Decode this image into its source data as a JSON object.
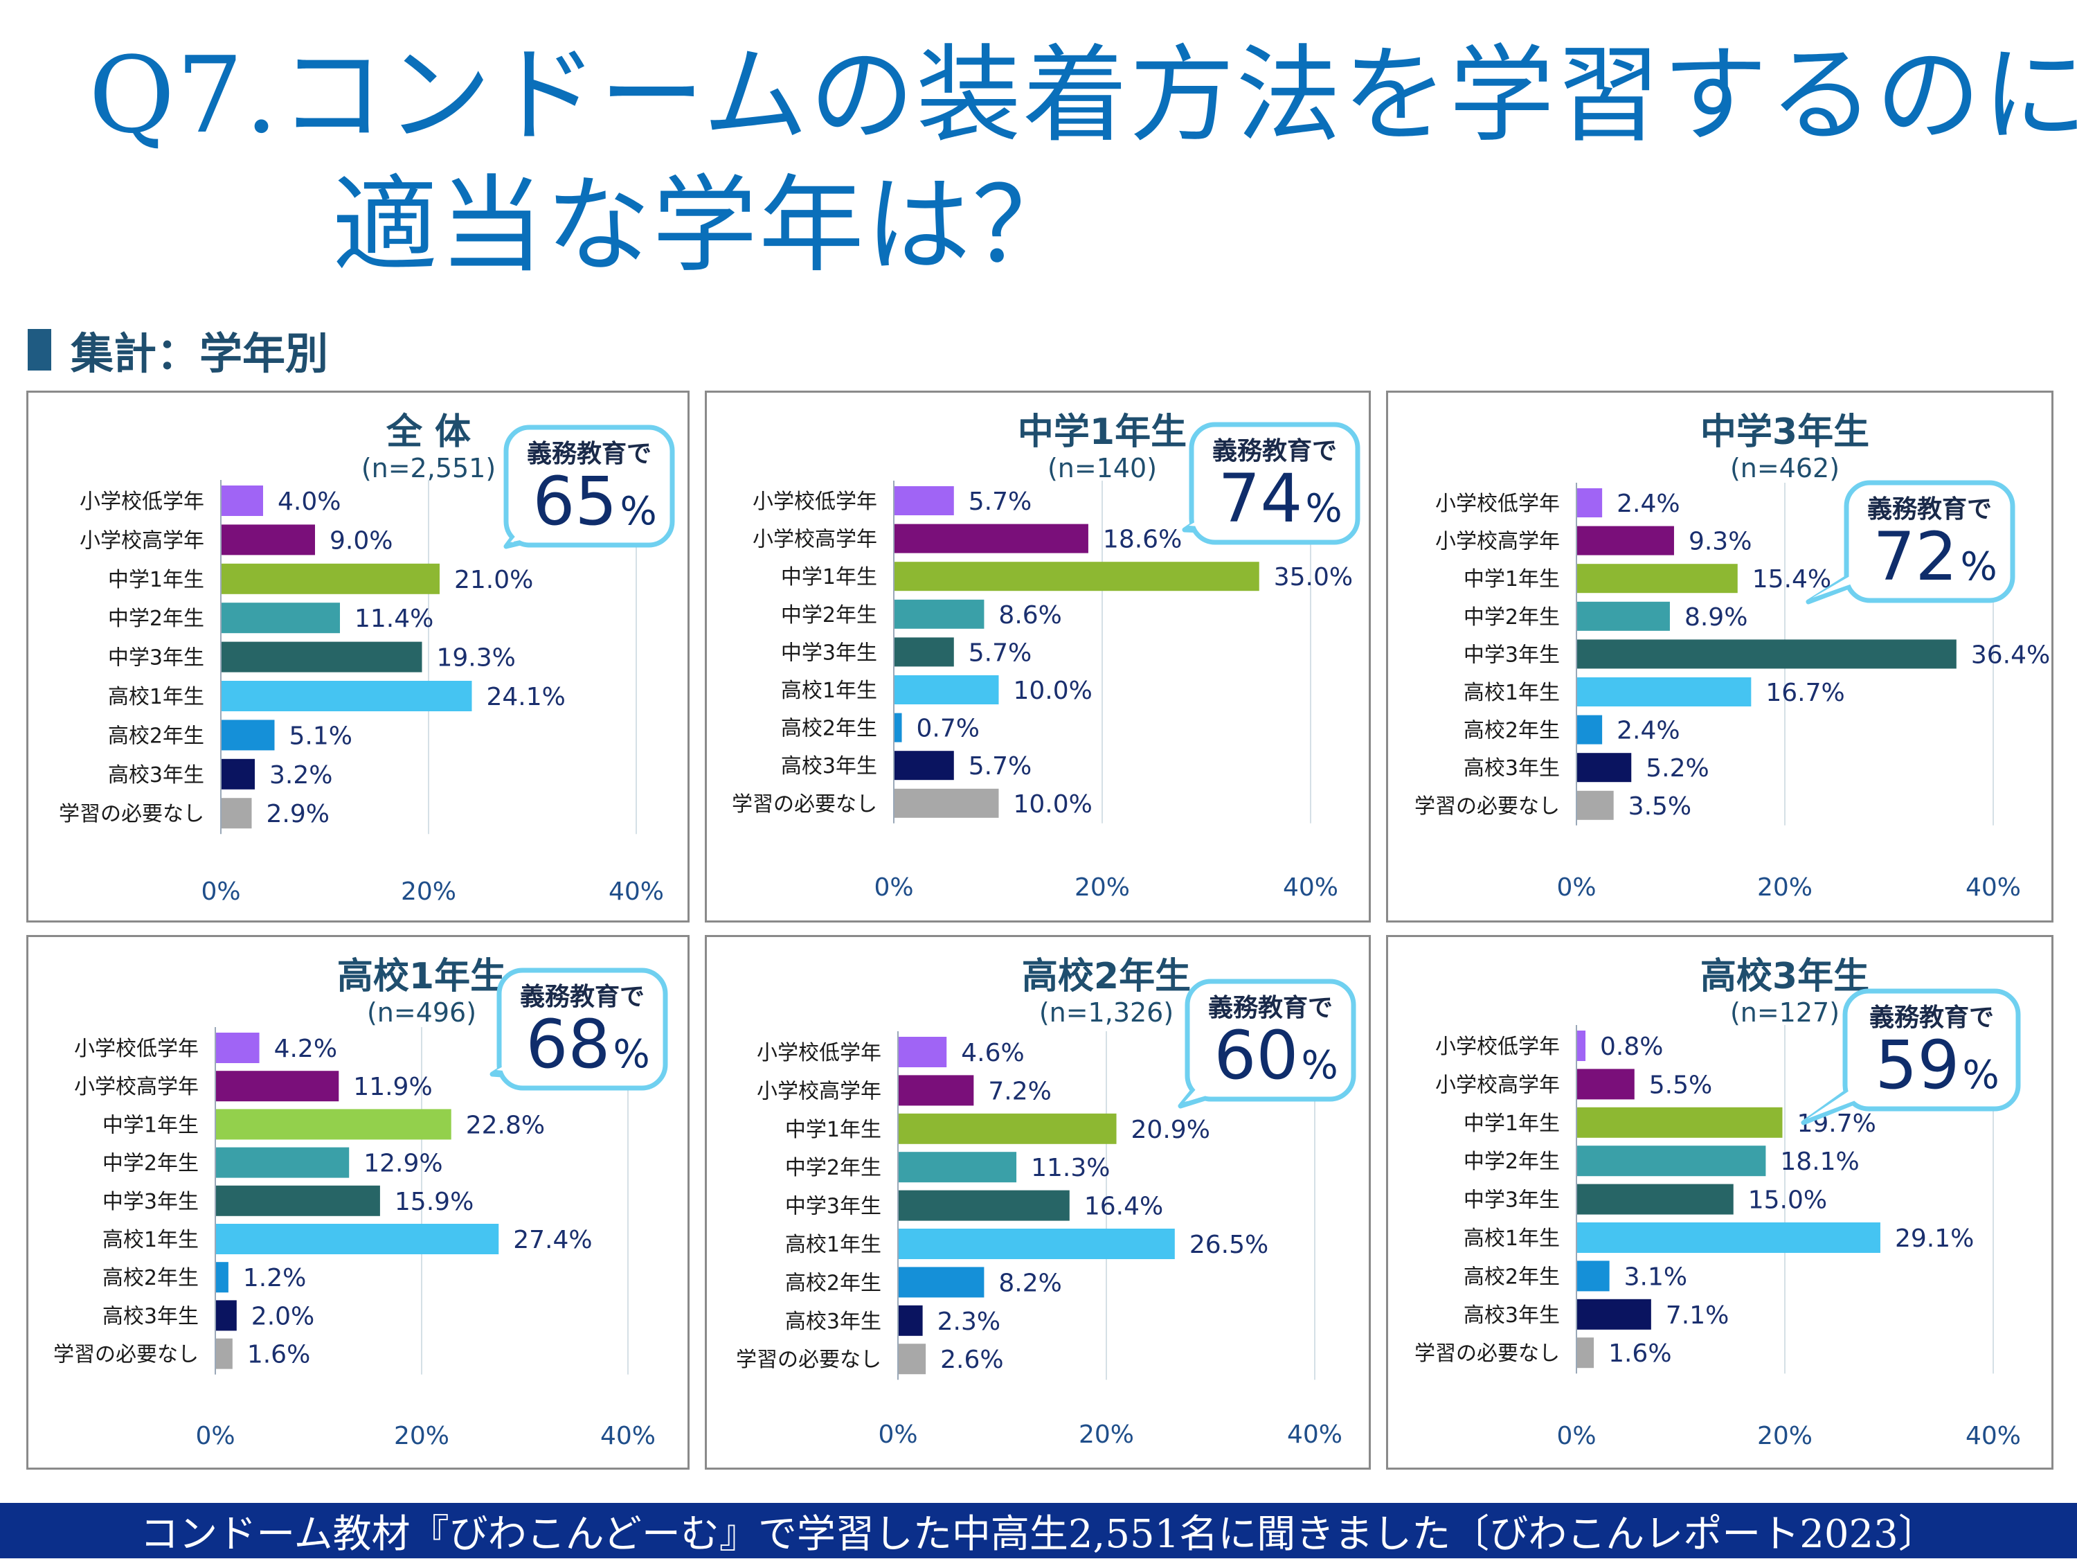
{
  "title": {
    "line1": "Q7.コンドームの装着方法を学習するのに",
    "line2": "適当な学年は？"
  },
  "section": {
    "label": "集計：学年別"
  },
  "footer": {
    "text": "コンドーム教材『びわこんどーむ』で学習した中高生2,551名に聞きました〔びわこんレポート2023〕"
  },
  "colors": {
    "bars": [
      "#a064f5",
      "#7a0f7a",
      "#8db832",
      "#3aa0a8",
      "#276566",
      "#45c4f2",
      "#1590d8",
      "#0a1460",
      "#a8a8a8"
    ],
    "bars_hs1_green": "#93d04c",
    "axis_text": "#1f4e8a",
    "value_text": "#1a2f6e",
    "callout_border": "#6fd0f0",
    "callout_number": "#0f2d6b",
    "panel_title": "#1f4e6e"
  },
  "callout_prefix": "義務教育で",
  "chart_data": [
    {
      "type": "bar",
      "orientation": "horizontal",
      "title": "全 体",
      "subtitle": "(n=2,551)",
      "categories": [
        "小学校低学年",
        "小学校高学年",
        "中学1年生",
        "中学2年生",
        "中学3年生",
        "高校1年生",
        "高校2年生",
        "高校3年生",
        "学習の必要なし"
      ],
      "values": [
        4.0,
        9.0,
        21.0,
        11.4,
        19.3,
        24.1,
        5.1,
        3.2,
        2.9
      ],
      "labels": [
        "4.0%",
        "9.0%",
        "21.0%",
        "11.4%",
        "19.3%",
        "24.1%",
        "5.1%",
        "3.2%",
        "2.9%"
      ],
      "xlim": [
        0,
        40
      ],
      "xticks": [
        "0%",
        "20%",
        "40%"
      ],
      "callout_value": "65",
      "callout_unit": "%"
    },
    {
      "type": "bar",
      "orientation": "horizontal",
      "title": "中学1年生",
      "subtitle": "(n=140)",
      "categories": [
        "小学校低学年",
        "小学校高学年",
        "中学1年生",
        "中学2年生",
        "中学3年生",
        "高校1年生",
        "高校2年生",
        "高校3年生",
        "学習の必要なし"
      ],
      "values": [
        5.7,
        18.6,
        35.0,
        8.6,
        5.7,
        10.0,
        0.7,
        5.7,
        10.0
      ],
      "labels": [
        "5.7%",
        "18.6%",
        "35.0%",
        "8.6%",
        "5.7%",
        "10.0%",
        "0.7%",
        "5.7%",
        "10.0%"
      ],
      "xlim": [
        0,
        40
      ],
      "xticks": [
        "0%",
        "20%",
        "40%"
      ],
      "callout_value": "74",
      "callout_unit": "%"
    },
    {
      "type": "bar",
      "orientation": "horizontal",
      "title": "中学3年生",
      "subtitle": "(n=462)",
      "categories": [
        "小学校低学年",
        "小学校高学年",
        "中学1年生",
        "中学2年生",
        "中学3年生",
        "高校1年生",
        "高校2年生",
        "高校3年生",
        "学習の必要なし"
      ],
      "values": [
        2.4,
        9.3,
        15.4,
        8.9,
        36.4,
        16.7,
        2.4,
        5.2,
        3.5
      ],
      "labels": [
        "2.4%",
        "9.3%",
        "15.4%",
        "8.9%",
        "36.4%",
        "16.7%",
        "2.4%",
        "5.2%",
        "3.5%"
      ],
      "xlim": [
        0,
        40
      ],
      "xticks": [
        "0%",
        "20%",
        "40%"
      ],
      "callout_value": "72",
      "callout_unit": "%"
    },
    {
      "type": "bar",
      "orientation": "horizontal",
      "title": "高校1年生",
      "subtitle": "(n=496)",
      "categories": [
        "小学校低学年",
        "小学校高学年",
        "中学1年生",
        "中学2年生",
        "中学3年生",
        "高校1年生",
        "高校2年生",
        "高校3年生",
        "学習の必要なし"
      ],
      "values": [
        4.2,
        11.9,
        22.8,
        12.9,
        15.9,
        27.4,
        1.2,
        2.0,
        1.6
      ],
      "labels": [
        "4.2%",
        "11.9%",
        "22.8%",
        "12.9%",
        "15.9%",
        "27.4%",
        "1.2%",
        "2.0%",
        "1.6%"
      ],
      "xlim": [
        0,
        40
      ],
      "xticks": [
        "0%",
        "20%",
        "40%"
      ],
      "callout_value": "68",
      "callout_unit": "%"
    },
    {
      "type": "bar",
      "orientation": "horizontal",
      "title": "高校2年生",
      "subtitle": "(n=1,326)",
      "categories": [
        "小学校低学年",
        "小学校高学年",
        "中学1年生",
        "中学2年生",
        "中学3年生",
        "高校1年生",
        "高校2年生",
        "高校3年生",
        "学習の必要なし"
      ],
      "values": [
        4.6,
        7.2,
        20.9,
        11.3,
        16.4,
        26.5,
        8.2,
        2.3,
        2.6
      ],
      "labels": [
        "4.6%",
        "7.2%",
        "20.9%",
        "11.3%",
        "16.4%",
        "26.5%",
        "8.2%",
        "2.3%",
        "2.6%"
      ],
      "xlim": [
        0,
        40
      ],
      "xticks": [
        "0%",
        "20%",
        "40%"
      ],
      "callout_value": "60",
      "callout_unit": "%"
    },
    {
      "type": "bar",
      "orientation": "horizontal",
      "title": "高校3年生",
      "subtitle": "(n=127)",
      "categories": [
        "小学校低学年",
        "小学校高学年",
        "中学1年生",
        "中学2年生",
        "中学3年生",
        "高校1年生",
        "高校2年生",
        "高校3年生",
        "学習の必要なし"
      ],
      "values": [
        0.8,
        5.5,
        19.7,
        18.1,
        15.0,
        29.1,
        3.1,
        7.1,
        1.6
      ],
      "labels": [
        "0.8%",
        "5.5%",
        "19.7%",
        "18.1%",
        "15.0%",
        "29.1%",
        "3.1%",
        "7.1%",
        "1.6%"
      ],
      "xlim": [
        0,
        40
      ],
      "xticks": [
        "0%",
        "20%",
        "40%"
      ],
      "callout_value": "59",
      "callout_unit": "%"
    }
  ]
}
